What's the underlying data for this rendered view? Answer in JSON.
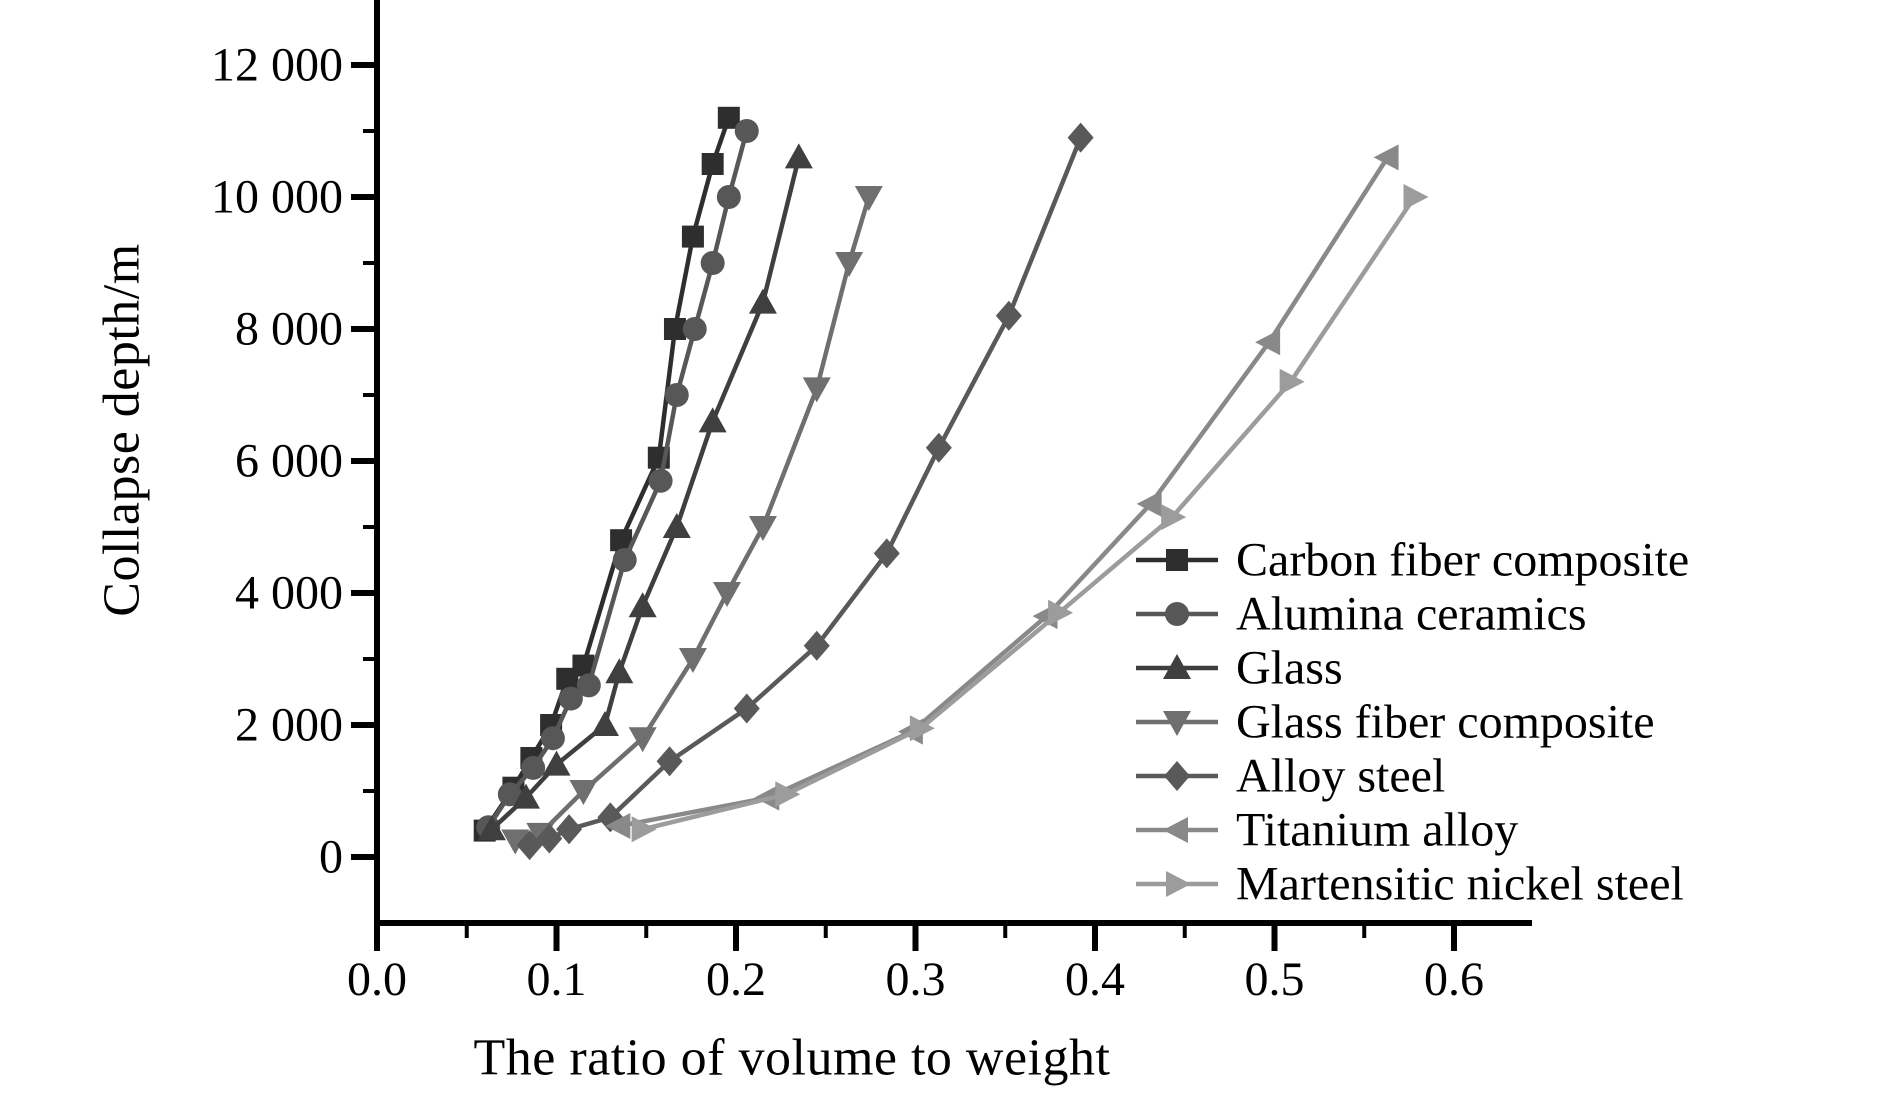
{
  "chart_data": {
    "type": "line",
    "title": "",
    "xlabel": "The ratio of volume to weight",
    "ylabel": "Collapse depth/m",
    "xlim": [
      0,
      0.64
    ],
    "ylim": [
      -1000,
      13000
    ],
    "grid": false,
    "background": "#ffffff",
    "axis_color": "#000000",
    "x_major_ticks": [
      0,
      0.1,
      0.2,
      0.3,
      0.4,
      0.5,
      0.6
    ],
    "x_tick_labels": [
      "0.0",
      "0.1",
      "0.2",
      "0.3",
      "0.4",
      "0.5",
      "0.6"
    ],
    "x_minor_ticks": [
      0.05,
      0.15,
      0.25,
      0.35,
      0.45,
      0.55
    ],
    "y_major_ticks": [
      0,
      2000,
      4000,
      6000,
      8000,
      10000,
      12000
    ],
    "y_tick_labels": [
      "0",
      "2 000",
      "4 000",
      "6 000",
      "8 000",
      "10 000",
      "12 000"
    ],
    "y_minor_ticks": [
      1000,
      3000,
      5000,
      7000,
      9000,
      11000
    ],
    "legend_position": "right-center",
    "series": [
      {
        "name": "Carbon fiber composite",
        "marker": "square",
        "color": "#2e2e2e",
        "points": [
          [
            0.06,
            400
          ],
          [
            0.076,
            1050
          ],
          [
            0.086,
            1500
          ],
          [
            0.097,
            2000
          ],
          [
            0.106,
            2700
          ],
          [
            0.115,
            2900
          ],
          [
            0.136,
            4800
          ],
          [
            0.157,
            6050
          ],
          [
            0.166,
            8000
          ],
          [
            0.176,
            9400
          ],
          [
            0.187,
            10500
          ],
          [
            0.196,
            11200
          ]
        ]
      },
      {
        "name": "Alumina ceramics",
        "marker": "circle",
        "color": "#575757",
        "points": [
          [
            0.062,
            450
          ],
          [
            0.074,
            950
          ],
          [
            0.087,
            1350
          ],
          [
            0.098,
            1800
          ],
          [
            0.108,
            2400
          ],
          [
            0.118,
            2600
          ],
          [
            0.138,
            4500
          ],
          [
            0.158,
            5700
          ],
          [
            0.167,
            7000
          ],
          [
            0.177,
            8000
          ],
          [
            0.187,
            9000
          ],
          [
            0.196,
            10000
          ],
          [
            0.206,
            11000
          ]
        ]
      },
      {
        "name": "Glass",
        "marker": "triangle-up",
        "color": "#3f3f3f",
        "points": [
          [
            0.064,
            420
          ],
          [
            0.083,
            900
          ],
          [
            0.1,
            1400
          ],
          [
            0.127,
            2000
          ],
          [
            0.135,
            2800
          ],
          [
            0.148,
            3800
          ],
          [
            0.167,
            5000
          ],
          [
            0.187,
            6600
          ],
          [
            0.215,
            8400
          ],
          [
            0.235,
            10600
          ]
        ]
      },
      {
        "name": "Glass fiber composite",
        "marker": "triangle-down",
        "color": "#6f6f6f",
        "points": [
          [
            0.077,
            250
          ],
          [
            0.091,
            350
          ],
          [
            0.115,
            1000
          ],
          [
            0.148,
            1800
          ],
          [
            0.176,
            3000
          ],
          [
            0.195,
            4000
          ],
          [
            0.215,
            5000
          ],
          [
            0.245,
            7100
          ],
          [
            0.263,
            9000
          ],
          [
            0.274,
            10000
          ]
        ]
      },
      {
        "name": "Alloy steel",
        "marker": "diamond",
        "color": "#595959",
        "points": [
          [
            0.085,
            180
          ],
          [
            0.096,
            280
          ],
          [
            0.107,
            420
          ],
          [
            0.13,
            600
          ],
          [
            0.163,
            1450
          ],
          [
            0.206,
            2250
          ],
          [
            0.245,
            3200
          ],
          [
            0.284,
            4600
          ],
          [
            0.313,
            6200
          ],
          [
            0.352,
            8200
          ],
          [
            0.392,
            10900
          ]
        ]
      },
      {
        "name": "Titanium alloy",
        "marker": "triangle-left",
        "color": "#898989",
        "points": [
          [
            0.135,
            470
          ],
          [
            0.218,
            900
          ],
          [
            0.298,
            1900
          ],
          [
            0.373,
            3650
          ],
          [
            0.431,
            5350
          ],
          [
            0.497,
            7800
          ],
          [
            0.563,
            10600
          ]
        ]
      },
      {
        "name": "Martensitic nickel steel",
        "marker": "triangle-right",
        "color": "#9c9c9c",
        "points": [
          [
            0.148,
            420
          ],
          [
            0.228,
            950
          ],
          [
            0.303,
            1950
          ],
          [
            0.38,
            3700
          ],
          [
            0.443,
            5150
          ],
          [
            0.509,
            7200
          ],
          [
            0.578,
            10000
          ]
        ]
      }
    ]
  }
}
